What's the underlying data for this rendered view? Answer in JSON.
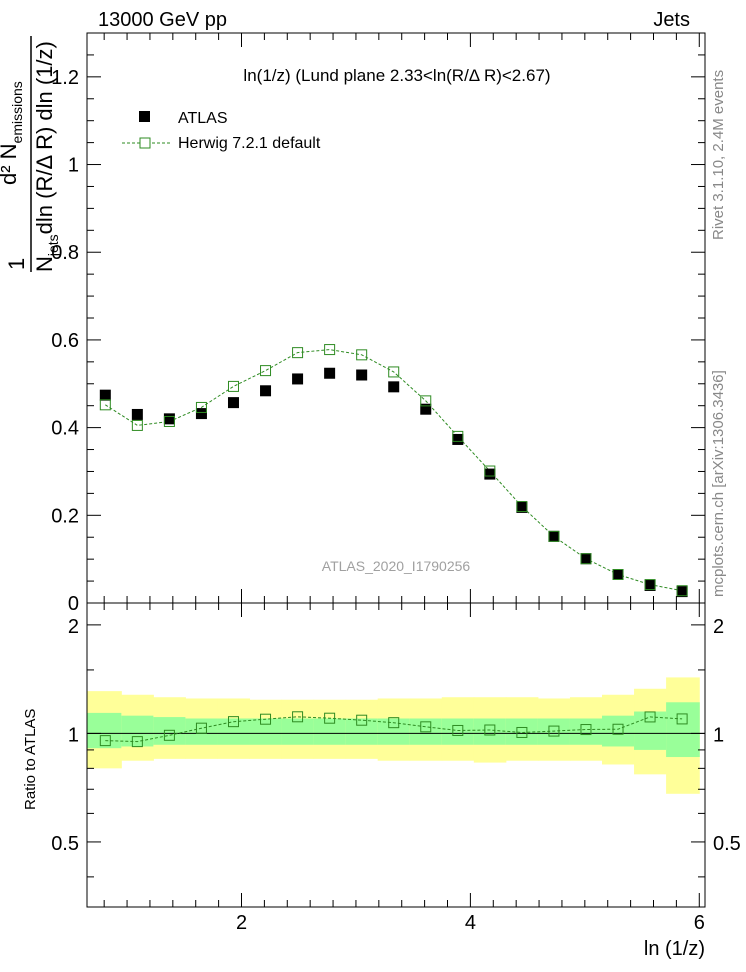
{
  "header": {
    "left": "13000 GeV pp",
    "right": "Jets"
  },
  "side_labels": {
    "rivet": "Rivet 3.1.10,  2.4M events",
    "mcplots": "mcplots.cern.ch [arXiv:1306.3436]"
  },
  "colors": {
    "atlas": "#000000",
    "herwig": "#2e8b22",
    "band_inner": "#99ff99",
    "band_outer": "#ffff99"
  },
  "chart_data": [
    {
      "type": "scatter",
      "title": "ln(1/z) (Lund plane 2.33<ln(R/Δ R)<2.67)",
      "watermark": "ATLAS_2020_I1790256",
      "ylabel": {
        "line1": "d² N",
        "line1_sub": "emissions",
        "frac_prefix": "1",
        "line2": "N",
        "line2_sub": "jets",
        "line2_rest": "dln (R/Δ R) dln (1/z)"
      },
      "xlim": [
        0.65,
        6.05
      ],
      "ylim": [
        0,
        1.3
      ],
      "yticks": [
        0,
        0.2,
        0.4,
        0.6,
        0.8,
        1,
        1.2
      ],
      "ytick_labels": [
        "0",
        "0.2",
        "0.4",
        "0.6",
        "0.8",
        "1",
        "1.2"
      ],
      "legend_placement": "top-left",
      "series": [
        {
          "name": "ATLAS",
          "x": [
            0.81,
            1.09,
            1.37,
            1.65,
            1.93,
            2.21,
            2.49,
            2.77,
            3.05,
            3.33,
            3.61,
            3.89,
            4.17,
            4.45,
            4.73,
            5.01,
            5.29,
            5.57,
            5.85
          ],
          "y": [
            0.474,
            0.43,
            0.42,
            0.432,
            0.457,
            0.484,
            0.511,
            0.524,
            0.52,
            0.493,
            0.442,
            0.373,
            0.294,
            0.218,
            0.152,
            0.101,
            0.065,
            0.04,
            0.026
          ]
        },
        {
          "name": "Herwig 7.2.1 default",
          "x": [
            0.81,
            1.09,
            1.37,
            1.65,
            1.93,
            2.21,
            2.49,
            2.77,
            3.05,
            3.33,
            3.61,
            3.89,
            4.17,
            4.45,
            4.73,
            5.01,
            5.29,
            5.57,
            5.85
          ],
          "y": [
            0.452,
            0.405,
            0.414,
            0.446,
            0.494,
            0.53,
            0.571,
            0.578,
            0.566,
            0.527,
            0.461,
            0.38,
            0.301,
            0.22,
            0.152,
            0.101,
            0.065,
            0.042,
            0.028
          ]
        }
      ]
    },
    {
      "type": "line",
      "ylabel": "Ratio to ATLAS",
      "xlabel": "ln (1/z)",
      "xlim": [
        0.65,
        6.05
      ],
      "ylim": [
        0.33,
        2.3
      ],
      "yticks": [
        0.5,
        1,
        2
      ],
      "ytick_labels": [
        "0.5",
        "1",
        "2"
      ],
      "xticks": [
        2,
        4,
        6
      ],
      "xtick_labels": [
        "2",
        "4",
        "6"
      ],
      "bins": [
        0.65,
        0.95,
        1.23,
        1.51,
        1.79,
        2.07,
        2.35,
        2.63,
        2.91,
        3.19,
        3.47,
        3.75,
        4.03,
        4.31,
        4.59,
        4.87,
        5.15,
        5.43,
        5.71,
        6.0
      ],
      "band_inner": [
        [
          0.91,
          1.14
        ],
        [
          0.92,
          1.12
        ],
        [
          0.93,
          1.11
        ],
        [
          0.93,
          1.1
        ],
        [
          0.93,
          1.1
        ],
        [
          0.93,
          1.1
        ],
        [
          0.93,
          1.1
        ],
        [
          0.93,
          1.1
        ],
        [
          0.93,
          1.1
        ],
        [
          0.93,
          1.1
        ],
        [
          0.93,
          1.1
        ],
        [
          0.93,
          1.1
        ],
        [
          0.93,
          1.1
        ],
        [
          0.93,
          1.1
        ],
        [
          0.93,
          1.1
        ],
        [
          0.93,
          1.1
        ],
        [
          0.92,
          1.12
        ],
        [
          0.9,
          1.15
        ],
        [
          0.86,
          1.22
        ]
      ],
      "band_outer": [
        [
          0.8,
          1.31
        ],
        [
          0.84,
          1.28
        ],
        [
          0.85,
          1.26
        ],
        [
          0.85,
          1.25
        ],
        [
          0.85,
          1.25
        ],
        [
          0.85,
          1.24
        ],
        [
          0.85,
          1.24
        ],
        [
          0.85,
          1.24
        ],
        [
          0.85,
          1.24
        ],
        [
          0.84,
          1.25
        ],
        [
          0.84,
          1.25
        ],
        [
          0.84,
          1.26
        ],
        [
          0.83,
          1.26
        ],
        [
          0.84,
          1.26
        ],
        [
          0.84,
          1.25
        ],
        [
          0.84,
          1.26
        ],
        [
          0.82,
          1.28
        ],
        [
          0.77,
          1.33
        ],
        [
          0.68,
          1.43
        ]
      ],
      "series": [
        {
          "name": "Herwig 7.2.1 default",
          "x": [
            0.81,
            1.09,
            1.37,
            1.65,
            1.93,
            2.21,
            2.49,
            2.77,
            3.05,
            3.33,
            3.61,
            3.89,
            4.17,
            4.45,
            4.73,
            5.01,
            5.29,
            5.57,
            5.85
          ],
          "y": [
            0.955,
            0.949,
            0.988,
            1.034,
            1.078,
            1.095,
            1.112,
            1.102,
            1.088,
            1.071,
            1.043,
            1.019,
            1.022,
            1.006,
            1.015,
            1.025,
            1.027,
            1.111,
            1.097
          ]
        }
      ]
    }
  ]
}
